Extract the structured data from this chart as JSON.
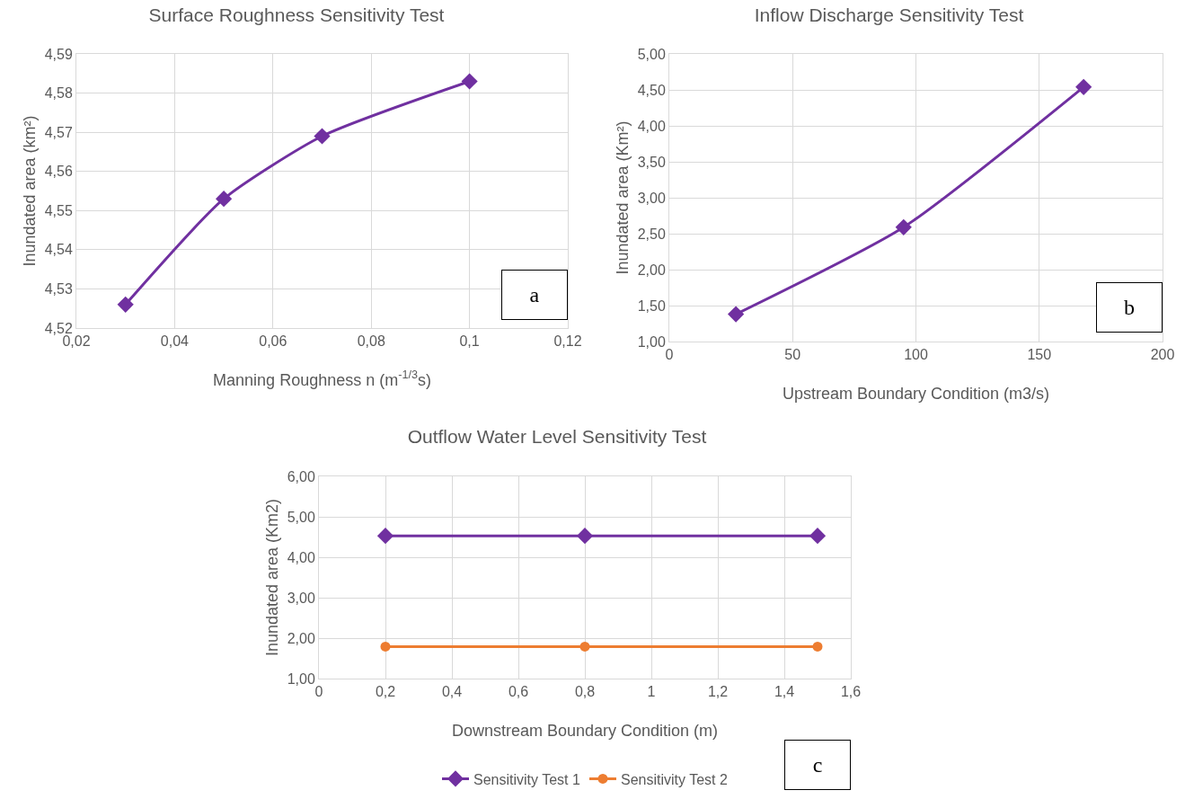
{
  "chart_data": [
    {
      "type": "line",
      "title": "Surface Roughness Sensitivity Test",
      "xlabel": "Manning Roughness n (m$^{-1/3}$s)",
      "ylabel": "Inundated area (km²)",
      "annotations": [
        "a"
      ],
      "x": [
        0.03,
        0.05,
        0.07,
        0.1
      ],
      "series": [
        {
          "color": "#7030a0",
          "values": [
            4.526,
            4.553,
            4.569,
            4.583
          ]
        }
      ],
      "xlim": [
        0.02,
        0.12
      ],
      "xticks": [
        {
          "value": 0.02,
          "label": "0,02"
        },
        {
          "value": 0.04,
          "label": "0,04"
        },
        {
          "value": 0.06,
          "label": "0,06"
        },
        {
          "value": 0.08,
          "label": "0,08"
        },
        {
          "value": 0.1,
          "label": "0,1"
        },
        {
          "value": 0.12,
          "label": "0,12"
        }
      ],
      "ylim": [
        4.52,
        4.59
      ],
      "yticks": [
        {
          "value": 4.52,
          "label": "4,52"
        },
        {
          "value": 4.53,
          "label": "4,53"
        },
        {
          "value": 4.54,
          "label": "4,54"
        },
        {
          "value": 4.55,
          "label": "4,55"
        },
        {
          "value": 4.56,
          "label": "4,56"
        },
        {
          "value": 4.57,
          "label": "4,57"
        },
        {
          "value": 4.58,
          "label": "4,58"
        },
        {
          "value": 4.59,
          "label": "4,59"
        }
      ],
      "grid": true,
      "marker": "diamond",
      "legend": false
    },
    {
      "type": "line",
      "title": "Inflow Discharge Sensitivity Test",
      "xlabel": "Upstream Boundary Condition (m3/s)",
      "ylabel": "Inundated area (Km²)",
      "annotations": [
        "b"
      ],
      "x": [
        27,
        95,
        168
      ],
      "series": [
        {
          "color": "#7030a0",
          "values": [
            1.38,
            2.59,
            4.54
          ]
        }
      ],
      "xlim": [
        0,
        200
      ],
      "xticks": [
        0,
        50,
        100,
        150,
        200
      ],
      "ylim": [
        1,
        5
      ],
      "yticks": [
        {
          "value": 1,
          "label": "1,00"
        },
        {
          "value": 1.5,
          "label": "1,50"
        },
        {
          "value": 2,
          "label": "2,00"
        },
        {
          "value": 2.5,
          "label": "2,50"
        },
        {
          "value": 3,
          "label": "3,00"
        },
        {
          "value": 3.5,
          "label": "3,50"
        },
        {
          "value": 4,
          "label": "4,00"
        },
        {
          "value": 4.5,
          "label": "4,50"
        },
        {
          "value": 5,
          "label": "5,00"
        }
      ],
      "grid": true,
      "marker": "diamond",
      "legend": false
    },
    {
      "type": "line",
      "title": "Outflow Water Level Sensitivity Test",
      "xlabel": "Downstream Boundary Condition (m)",
      "ylabel": "Inundated area (Km2)",
      "annotations": [
        "c"
      ],
      "x": [
        0.2,
        0.8,
        1.5
      ],
      "series": [
        {
          "name": "Sensitivity Test 1",
          "color": "#7030a0",
          "marker": "diamond",
          "values": [
            4.53,
            4.53,
            4.53
          ]
        },
        {
          "name": "Sensitivity Test 2",
          "color": "#ed7d31",
          "marker": "circle",
          "values": [
            1.79,
            1.79,
            1.79
          ]
        }
      ],
      "xlim": [
        0,
        1.6
      ],
      "xticks": [
        0,
        {
          "value": 0.2,
          "label": "0,2"
        },
        {
          "value": 0.4,
          "label": "0,4"
        },
        {
          "value": 0.6,
          "label": "0,6"
        },
        {
          "value": 0.8,
          "label": "0,8"
        },
        1,
        {
          "value": 1.2,
          "label": "1,2"
        },
        {
          "value": 1.4,
          "label": "1,4"
        },
        {
          "value": 1.6,
          "label": "1,6"
        }
      ],
      "ylim": [
        1,
        6
      ],
      "yticks": [
        {
          "value": 1,
          "label": "1,00"
        },
        {
          "value": 2,
          "label": "2,00"
        },
        {
          "value": 3,
          "label": "3,00"
        },
        {
          "value": 4,
          "label": "4,00"
        },
        {
          "value": 5,
          "label": "5,00"
        },
        {
          "value": 6,
          "label": "6,00"
        }
      ],
      "grid": true,
      "legend": "bottom"
    }
  ]
}
